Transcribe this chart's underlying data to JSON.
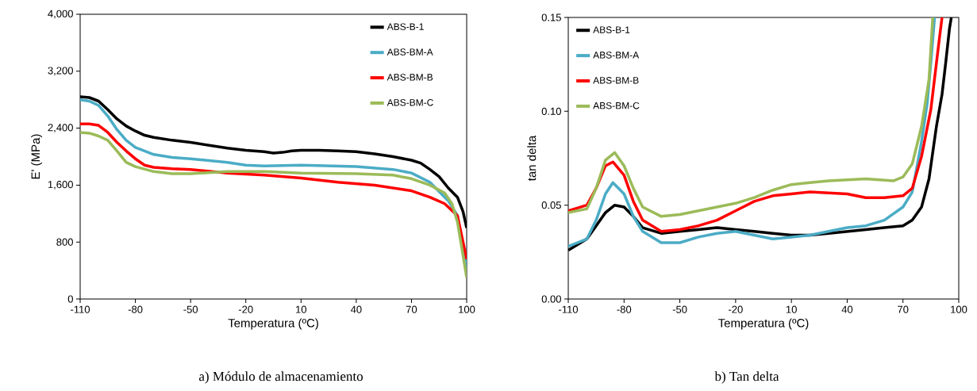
{
  "chart_data": [
    {
      "type": "line",
      "title": "a) Módulo de almacenamiento",
      "xlabel": "Temperatura (ºC)",
      "ylabel": "E' (MPa)",
      "legend": "top right",
      "xlim": [
        -110,
        100
      ],
      "xticks": [
        -110,
        -80,
        -50,
        -20,
        10,
        40,
        70,
        100
      ],
      "ylim": [
        0,
        4000
      ],
      "yticks": [
        0,
        800,
        {
          "value": 1600,
          "label": "1,600"
        },
        {
          "value": 2400,
          "label": "2,400"
        },
        {
          "value": 3200,
          "label": "3,200"
        },
        {
          "value": 4000,
          "label": "4,000"
        }
      ],
      "series": [
        {
          "name": "ABS-B-1",
          "color": "#000000",
          "x": [
            -110,
            -105,
            -100,
            -95,
            -90,
            -85,
            -80,
            -75,
            -70,
            -60,
            -50,
            -40,
            -30,
            -20,
            -10,
            -5,
            0,
            5,
            10,
            20,
            30,
            40,
            50,
            60,
            70,
            75,
            80,
            85,
            90,
            95,
            98,
            100
          ],
          "values": [
            2840,
            2830,
            2780,
            2660,
            2530,
            2430,
            2360,
            2300,
            2270,
            2230,
            2200,
            2160,
            2120,
            2090,
            2070,
            2050,
            2060,
            2080,
            2090,
            2090,
            2080,
            2070,
            2040,
            2000,
            1950,
            1910,
            1820,
            1720,
            1560,
            1430,
            1230,
            1000
          ]
        },
        {
          "name": "ABS-BM-A",
          "color": "#4bacc6",
          "x": [
            -110,
            -105,
            -100,
            -95,
            -90,
            -85,
            -80,
            -70,
            -60,
            -50,
            -30,
            -20,
            -10,
            10,
            40,
            60,
            70,
            80,
            90,
            95,
            100
          ],
          "values": [
            2800,
            2780,
            2720,
            2570,
            2380,
            2230,
            2130,
            2030,
            1990,
            1970,
            1920,
            1880,
            1870,
            1880,
            1860,
            1820,
            1770,
            1640,
            1380,
            1170,
            430
          ]
        },
        {
          "name": "ABS-BM-B",
          "color": "#ff0000",
          "x": [
            -110,
            -105,
            -100,
            -95,
            -90,
            -85,
            -80,
            -75,
            -70,
            -60,
            -50,
            -30,
            -10,
            10,
            30,
            50,
            70,
            80,
            88,
            95,
            100
          ],
          "values": [
            2460,
            2460,
            2440,
            2340,
            2200,
            2080,
            1970,
            1880,
            1850,
            1830,
            1820,
            1770,
            1740,
            1700,
            1640,
            1600,
            1520,
            1430,
            1340,
            1170,
            560
          ]
        },
        {
          "name": "ABS-BM-C",
          "color": "#9bbb59",
          "x": [
            -110,
            -105,
            -100,
            -95,
            -90,
            -85,
            -80,
            -70,
            -60,
            -50,
            -30,
            -10,
            10,
            40,
            60,
            70,
            80,
            88,
            92,
            95,
            100
          ],
          "values": [
            2340,
            2330,
            2290,
            2230,
            2080,
            1920,
            1860,
            1790,
            1760,
            1760,
            1790,
            1790,
            1770,
            1760,
            1740,
            1690,
            1600,
            1490,
            1340,
            1080,
            300
          ]
        }
      ]
    },
    {
      "type": "line",
      "title": "b) Tan delta",
      "xlabel": "Temperatura (ºC)",
      "ylabel": "tan delta",
      "legend": "top left",
      "xlim": [
        -110,
        100
      ],
      "xticks": [
        -110,
        -80,
        -50,
        -20,
        10,
        40,
        70,
        100
      ],
      "ylim": [
        0,
        0.15
      ],
      "yticks": [
        {
          "value": 0,
          "label": "0.00"
        },
        0.05,
        {
          "value": 0.1,
          "label": "0.10"
        },
        0.15
      ],
      "series": [
        {
          "name": "ABS-B-1",
          "color": "#000000",
          "x": [
            -110,
            -100,
            -95,
            -90,
            -85,
            -80,
            -75,
            -70,
            -60,
            -50,
            -40,
            -30,
            -20,
            -10,
            0,
            10,
            20,
            30,
            40,
            50,
            60,
            70,
            75,
            80,
            84,
            88,
            91,
            93,
            95,
            96
          ],
          "values": [
            0.026,
            0.032,
            0.039,
            0.046,
            0.05,
            0.049,
            0.044,
            0.038,
            0.035,
            0.036,
            0.037,
            0.038,
            0.037,
            0.036,
            0.035,
            0.034,
            0.034,
            0.035,
            0.036,
            0.037,
            0.038,
            0.039,
            0.042,
            0.049,
            0.064,
            0.092,
            0.109,
            0.126,
            0.144,
            0.15
          ]
        },
        {
          "name": "ABS-BM-A",
          "color": "#4bacc6",
          "x": [
            -110,
            -100,
            -95,
            -90,
            -86,
            -80,
            -75,
            -70,
            -60,
            -50,
            -40,
            -30,
            -20,
            -10,
            0,
            10,
            20,
            30,
            40,
            50,
            60,
            70,
            75,
            80,
            83,
            85,
            87
          ],
          "values": [
            0.028,
            0.032,
            0.042,
            0.056,
            0.062,
            0.056,
            0.044,
            0.036,
            0.03,
            0.03,
            0.033,
            0.035,
            0.036,
            0.034,
            0.032,
            0.033,
            0.034,
            0.036,
            0.038,
            0.039,
            0.042,
            0.049,
            0.057,
            0.084,
            0.104,
            0.126,
            0.15
          ]
        },
        {
          "name": "ABS-BM-B",
          "color": "#ff0000",
          "x": [
            -110,
            -100,
            -95,
            -90,
            -86,
            -80,
            -75,
            -70,
            -60,
            -50,
            -40,
            -30,
            -20,
            -10,
            0,
            10,
            20,
            40,
            50,
            60,
            70,
            75,
            80,
            85,
            89,
            91
          ],
          "values": [
            0.047,
            0.05,
            0.059,
            0.071,
            0.073,
            0.066,
            0.052,
            0.042,
            0.036,
            0.037,
            0.039,
            0.042,
            0.047,
            0.052,
            0.055,
            0.056,
            0.057,
            0.056,
            0.054,
            0.054,
            0.055,
            0.059,
            0.076,
            0.101,
            0.134,
            0.15
          ]
        },
        {
          "name": "ABS-BM-C",
          "color": "#9bbb59",
          "x": [
            -110,
            -100,
            -95,
            -90,
            -85,
            -80,
            -75,
            -70,
            -60,
            -50,
            -40,
            -30,
            -20,
            -10,
            0,
            10,
            20,
            30,
            50,
            65,
            70,
            75,
            80,
            84,
            86
          ],
          "values": [
            0.046,
            0.048,
            0.059,
            0.074,
            0.078,
            0.071,
            0.059,
            0.049,
            0.044,
            0.045,
            0.047,
            0.049,
            0.051,
            0.054,
            0.058,
            0.061,
            0.062,
            0.063,
            0.064,
            0.063,
            0.065,
            0.072,
            0.092,
            0.117,
            0.15
          ]
        }
      ]
    }
  ]
}
